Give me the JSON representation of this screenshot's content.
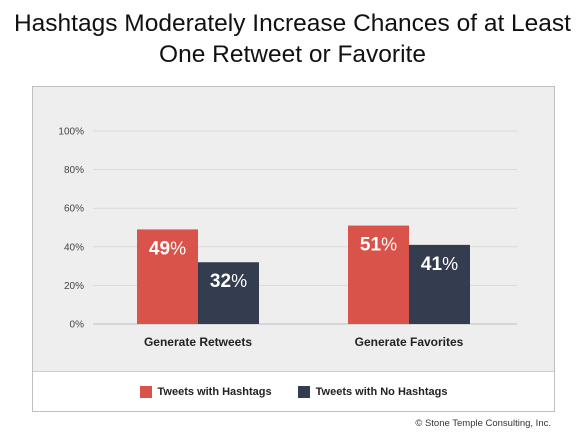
{
  "title_line1": "Hashtags Moderately Increase Chances of at Least",
  "title_line2": "One Retweet or Favorite",
  "credit": "© Stone Temple Consulting, Inc.",
  "colors": {
    "with_hashtags": "#d9534a",
    "no_hashtags": "#343c4f",
    "grid": "#d9d9d9"
  },
  "chart_data": {
    "type": "bar",
    "categories": [
      "Generate Retweets",
      "Generate Favorites"
    ],
    "series": [
      {
        "name": "Tweets with Hashtags",
        "values": [
          49,
          51
        ],
        "labels": [
          "49%",
          "51%"
        ]
      },
      {
        "name": "Tweets with No Hashtags",
        "values": [
          32,
          41
        ],
        "labels": [
          "32%",
          "41%"
        ]
      }
    ],
    "yticks": [
      "0%",
      "20%",
      "40%",
      "60%",
      "80%",
      "100%"
    ],
    "ylim": [
      0,
      100
    ],
    "grid": true,
    "legend_position": "bottom"
  }
}
